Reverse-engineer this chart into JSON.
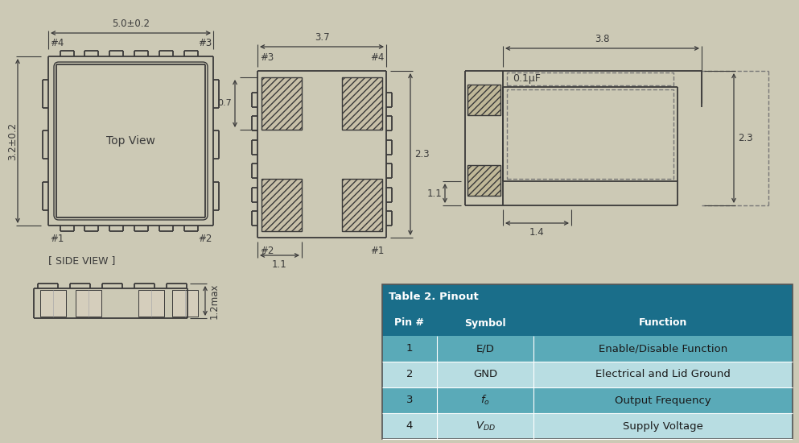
{
  "bg_color": "#ccc9b5",
  "line_color": "#3a3a3a",
  "dim_color": "#3a3a3a",
  "table_header_color": "#1a6e8a",
  "table_row_odd": "#5aaab8",
  "table_row_even": "#b8dde2",
  "table_title": "Table 2. Pinout",
  "table_col_headers": [
    "Pin #",
    "Symbol",
    "Function"
  ],
  "table_rows": [
    [
      "1",
      "E/D",
      "Enable/Disable Function"
    ],
    [
      "2",
      "GND",
      "Electrical and Lid Ground"
    ],
    [
      "3",
      "fo",
      "Output Frequency"
    ],
    [
      "4",
      "Vdd",
      "Supply Voltage"
    ]
  ],
  "top_view_label": "Top View",
  "side_view_label": "[ SIDE VIEW ]",
  "dim_50_02": "5.0±0.2",
  "dim_32_02": "3.2±0.2",
  "dim_37": "3.7",
  "dim_07": "0.7",
  "dim_11_side": "1.1",
  "dim_23_side": "2.3",
  "dim_38": "3.8",
  "dim_23_right": "2.3",
  "dim_11_right": "1.1",
  "dim_14": "1.4",
  "dim_12max": "1.2max",
  "cap_label": "0.1μF"
}
